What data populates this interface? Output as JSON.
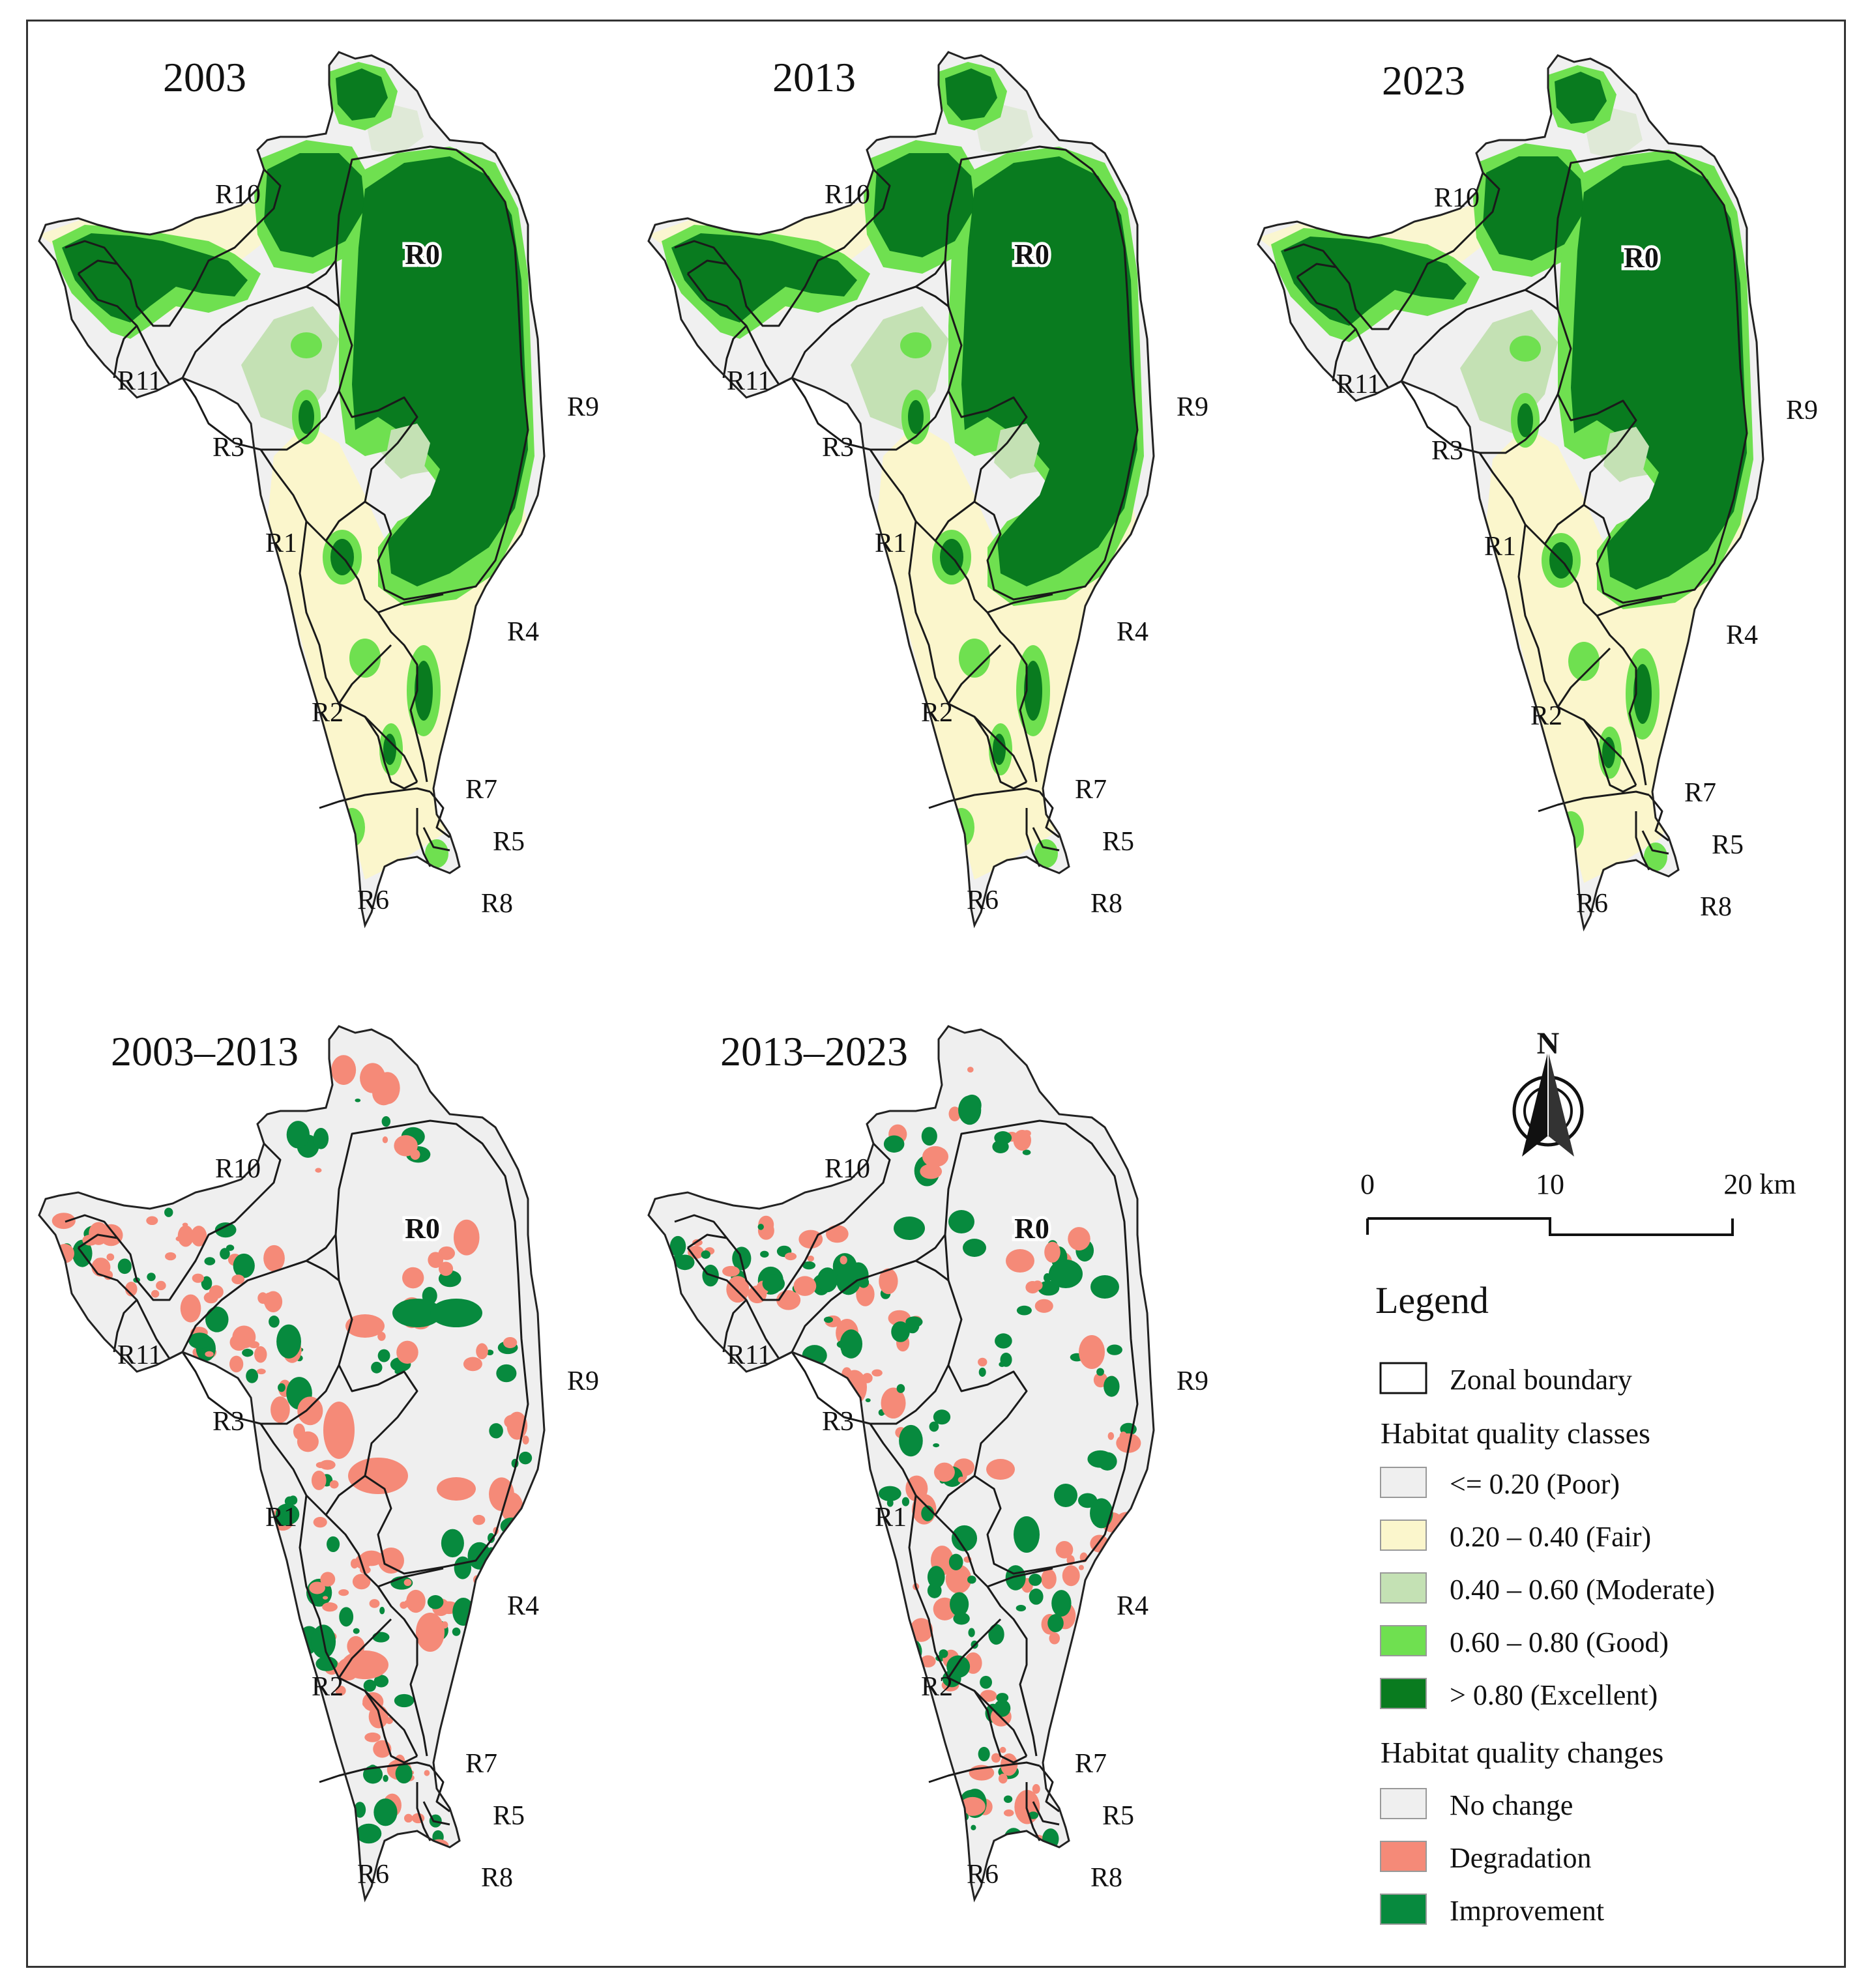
{
  "panels": [
    {
      "id": "p2003",
      "title": "2003",
      "kind": "quality"
    },
    {
      "id": "p2013",
      "title": "2013",
      "kind": "quality"
    },
    {
      "id": "p2023",
      "title": "2023",
      "kind": "quality"
    },
    {
      "id": "p0313",
      "title": "2003–2013",
      "kind": "change"
    },
    {
      "id": "p1323",
      "title": "2013–2023",
      "kind": "change"
    }
  ],
  "zones": [
    "R0",
    "R1",
    "R2",
    "R3",
    "R4",
    "R5",
    "R6",
    "R7",
    "R8",
    "R9",
    "R10",
    "R11"
  ],
  "north_arrow": {
    "label": "N"
  },
  "scale_bar": {
    "labels": [
      "0",
      "10",
      "20 km"
    ],
    "length_km": 20
  },
  "legend": {
    "title": "Legend",
    "boundary": {
      "label": "Zonal boundary"
    },
    "quality_heading": "Habitat quality classes",
    "quality_classes": [
      {
        "label": "<= 0.20 (Poor)",
        "color": "#efefef"
      },
      {
        "label": "0.20 – 0.40 (Fair)",
        "color": "#fbf6cc"
      },
      {
        "label": "0.40 – 0.60 (Moderate)",
        "color": "#c4e1b4"
      },
      {
        "label": "0.60 – 0.80 (Good)",
        "color": "#6fe050"
      },
      {
        "label": "> 0.80 (Excellent)",
        "color": "#097b1f"
      }
    ],
    "change_heading": "Habitat quality changes",
    "change_classes": [
      {
        "label": "No change",
        "color": "#efefef"
      },
      {
        "label": "Degradation",
        "color": "#f58a78"
      },
      {
        "label": "Improvement",
        "color": "#078a3e"
      }
    ]
  }
}
